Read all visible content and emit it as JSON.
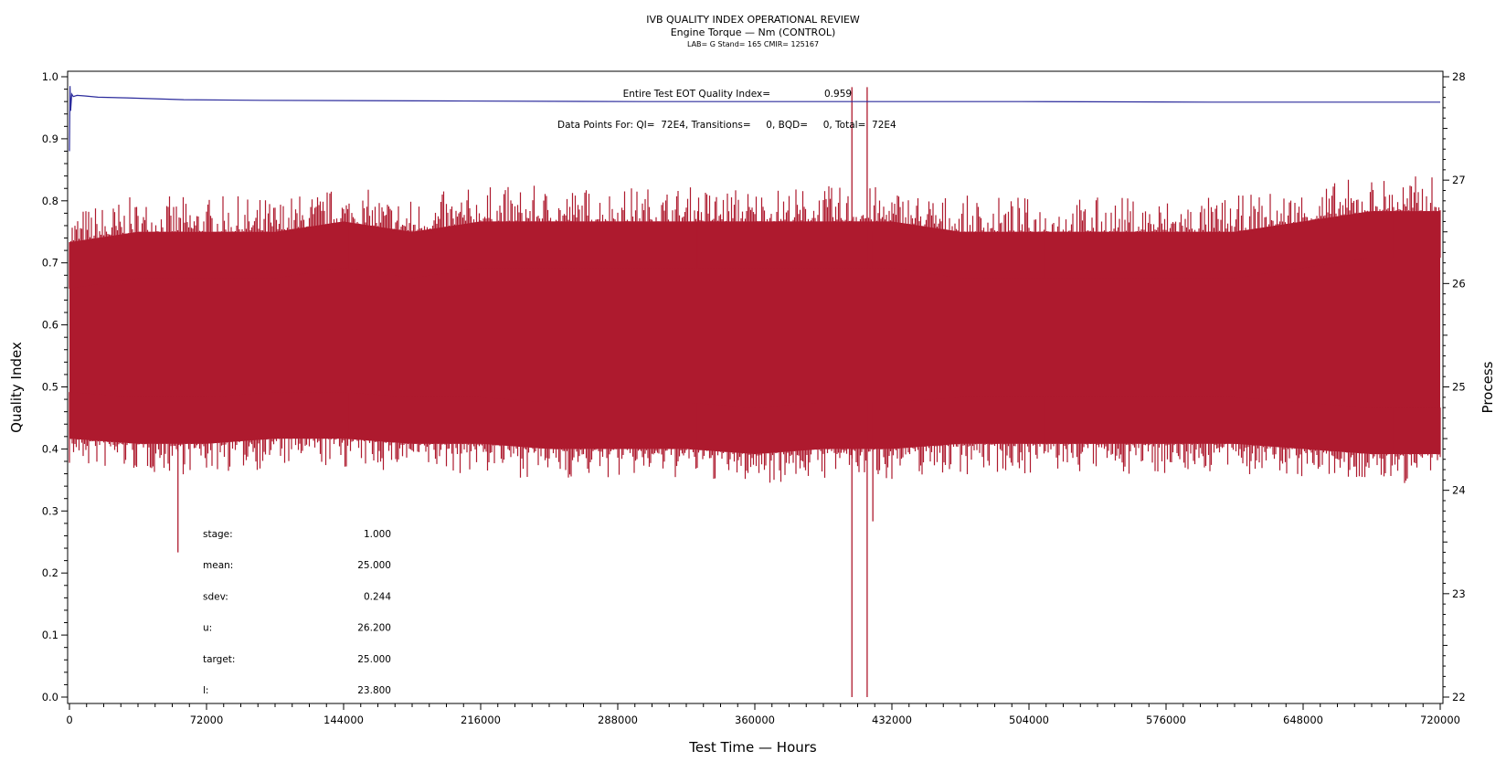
{
  "header": {
    "title": "IVB QUALITY INDEX OPERATIONAL REVIEW",
    "subtitle": "Engine Torque — Nm (CONTROL)",
    "subtitle2": "LAB= G Stand= 165 CMIR= 125167"
  },
  "annotations": {
    "qi_line": "Entire Test EOT Quality Index=",
    "qi_value": "0.959",
    "points_line": "Data Points For: QI=  72E4, Transitions=     0, BQD=     0, Total=  72E4"
  },
  "stats": [
    {
      "label": "stage:",
      "value": "1.000"
    },
    {
      "label": "mean:",
      "value": "25.000"
    },
    {
      "label": "sdev:",
      "value": "0.244"
    },
    {
      "label": "u:",
      "value": "26.200"
    },
    {
      "label": "target:",
      "value": "25.000"
    },
    {
      "label": "l:",
      "value": "23.800"
    }
  ],
  "colors": {
    "process": "#ae1a2e",
    "quality_index": "#2b2b9c",
    "axis": "#000000"
  },
  "chart_data": {
    "type": "line",
    "xlabel": "Test Time — Hours",
    "ylabel_left": "Quality Index",
    "ylabel_right": "Process",
    "xlim": [
      0,
      720000
    ],
    "ylim_left": [
      0,
      1.0
    ],
    "ylim_right": [
      22,
      28
    ],
    "x_ticks": [
      0,
      72000,
      144000,
      216000,
      288000,
      360000,
      432000,
      504000,
      576000,
      648000,
      720000
    ],
    "y_left_ticks": [
      "0.0",
      "0.1",
      "0.2",
      "0.3",
      "0.4",
      "0.5",
      "0.6",
      "0.7",
      "0.8",
      "0.9",
      "1.0"
    ],
    "y_right_ticks": [
      "22",
      "23",
      "24",
      "25",
      "26",
      "27",
      "28"
    ],
    "grid": false,
    "series": [
      {
        "name": "Quality Index",
        "axis": "left",
        "x": [
          0,
          300,
          600,
          1200,
          2000,
          4000,
          8000,
          15000,
          30000,
          60000,
          100000,
          200000,
          300000,
          400000,
          420000,
          440000,
          500000,
          600000,
          700000,
          720000
        ],
        "y": [
          0.88,
          0.985,
          0.945,
          0.972,
          0.968,
          0.97,
          0.969,
          0.967,
          0.966,
          0.963,
          0.962,
          0.961,
          0.96,
          0.96,
          0.96,
          0.96,
          0.96,
          0.959,
          0.959,
          0.959
        ]
      },
      {
        "axis": "right",
        "x": [
          0,
          36000,
          72000,
          108000,
          144000,
          180000,
          216000,
          252000,
          288000,
          324000,
          360000,
          396000,
          432000,
          468000,
          504000,
          540000,
          576000,
          612000,
          648000,
          684000,
          720000
        ],
        "upper": [
          26.4,
          26.5,
          26.5,
          26.5,
          26.6,
          26.5,
          26.6,
          26.6,
          26.6,
          26.6,
          26.6,
          26.6,
          26.6,
          26.5,
          26.5,
          26.5,
          26.5,
          26.5,
          26.6,
          26.7,
          26.7
        ],
        "lower": [
          24.5,
          24.45,
          24.45,
          24.5,
          24.5,
          24.45,
          24.45,
          24.4,
          24.4,
          24.4,
          24.35,
          24.4,
          24.4,
          24.45,
          24.45,
          24.45,
          24.45,
          24.45,
          24.4,
          24.35,
          24.35
        ],
        "spikes": [
          {
            "x": 57000,
            "low": 23.4,
            "high": 26.5
          },
          {
            "x": 330000,
            "low": 25.9,
            "high": 26.7
          },
          {
            "x": 411000,
            "low": 22.0,
            "high": 27.9
          },
          {
            "x": 419000,
            "low": 22.0,
            "high": 27.9
          },
          {
            "x": 422000,
            "low": 23.7,
            "high": 26.5
          }
        ]
      }
    ]
  }
}
